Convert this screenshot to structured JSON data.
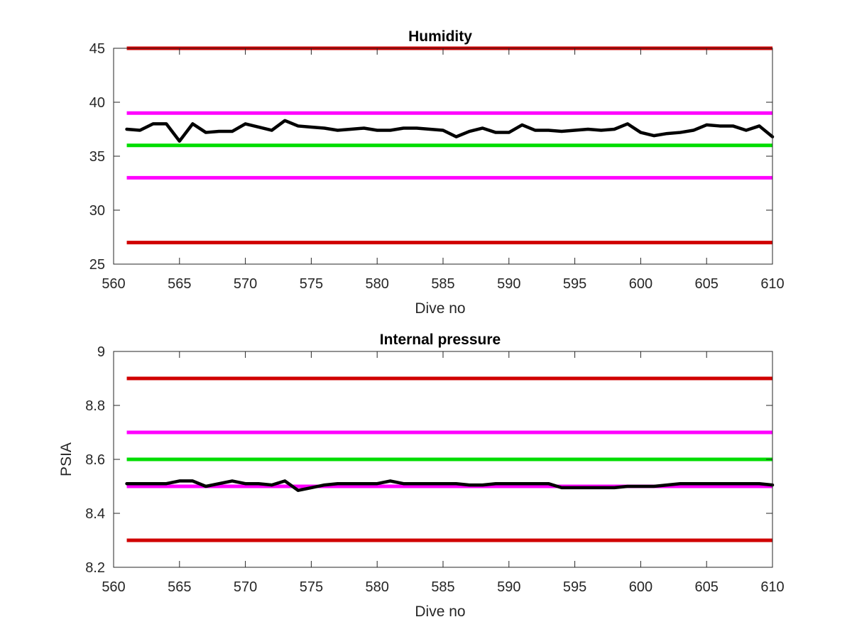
{
  "chart_data": [
    {
      "type": "line",
      "title": "Humidity",
      "xlabel": "Dive no",
      "ylabel": "",
      "xlim": [
        560,
        610
      ],
      "ylim": [
        25,
        45
      ],
      "xticks": [
        560,
        565,
        570,
        575,
        580,
        585,
        590,
        595,
        600,
        605,
        610
      ],
      "yticks": [
        25,
        30,
        35,
        40,
        45
      ],
      "grid": false,
      "reference_lines": [
        {
          "y": 45,
          "color": "#d00000"
        },
        {
          "y": 39,
          "color": "#ff00ff"
        },
        {
          "y": 36,
          "color": "#00dd00"
        },
        {
          "y": 33,
          "color": "#ff00ff"
        },
        {
          "y": 27,
          "color": "#d00000"
        }
      ],
      "series": [
        {
          "color": "#000000",
          "x": [
            561,
            562,
            563,
            564,
            565,
            566,
            567,
            568,
            569,
            570,
            571,
            572,
            573,
            574,
            575,
            576,
            577,
            578,
            579,
            580,
            581,
            582,
            583,
            584,
            585,
            586,
            587,
            588,
            589,
            590,
            591,
            592,
            593,
            594,
            595,
            596,
            597,
            598,
            599,
            600,
            601,
            602,
            603,
            604,
            605,
            606,
            607,
            608,
            609,
            610
          ],
          "y": [
            37.5,
            37.4,
            38.0,
            38.0,
            36.4,
            38.0,
            37.2,
            37.3,
            37.3,
            38.0,
            37.7,
            37.4,
            38.3,
            37.8,
            37.7,
            37.6,
            37.4,
            37.5,
            37.6,
            37.4,
            37.4,
            37.6,
            37.6,
            37.5,
            37.4,
            36.8,
            37.3,
            37.6,
            37.2,
            37.2,
            37.9,
            37.4,
            37.4,
            37.3,
            37.4,
            37.5,
            37.4,
            37.5,
            38.0,
            37.2,
            36.9,
            37.1,
            37.2,
            37.4,
            37.9,
            37.8,
            37.8,
            37.4,
            37.8,
            36.8
          ]
        }
      ]
    },
    {
      "type": "line",
      "title": "Internal pressure",
      "xlabel": "Dive no",
      "ylabel": "PSIA",
      "xlim": [
        560,
        610
      ],
      "ylim": [
        8.2,
        9
      ],
      "xticks": [
        560,
        565,
        570,
        575,
        580,
        585,
        590,
        595,
        600,
        605,
        610
      ],
      "yticks": [
        "8.2",
        "8.4",
        "8.6",
        "8.8",
        "9"
      ],
      "grid": false,
      "reference_lines": [
        {
          "y": 8.9,
          "color": "#d00000"
        },
        {
          "y": 8.7,
          "color": "#ff00ff"
        },
        {
          "y": 8.6,
          "color": "#00dd00"
        },
        {
          "y": 8.5,
          "color": "#ff00ff"
        },
        {
          "y": 8.3,
          "color": "#d00000"
        }
      ],
      "series": [
        {
          "color": "#000000",
          "x": [
            561,
            562,
            563,
            564,
            565,
            566,
            567,
            568,
            569,
            570,
            571,
            572,
            573,
            574,
            575,
            576,
            577,
            578,
            579,
            580,
            581,
            582,
            583,
            584,
            585,
            586,
            587,
            588,
            589,
            590,
            591,
            592,
            593,
            594,
            595,
            596,
            597,
            598,
            599,
            600,
            601,
            602,
            603,
            604,
            605,
            606,
            607,
            608,
            609,
            610
          ],
          "y": [
            8.51,
            8.51,
            8.51,
            8.51,
            8.52,
            8.52,
            8.5,
            8.51,
            8.52,
            8.51,
            8.51,
            8.505,
            8.52,
            8.485,
            8.495,
            8.505,
            8.51,
            8.51,
            8.51,
            8.51,
            8.52,
            8.51,
            8.51,
            8.51,
            8.51,
            8.51,
            8.505,
            8.505,
            8.51,
            8.51,
            8.51,
            8.51,
            8.51,
            8.495,
            8.495,
            8.495,
            8.495,
            8.495,
            8.5,
            8.5,
            8.5,
            8.505,
            8.51,
            8.51,
            8.51,
            8.51,
            8.51,
            8.51,
            8.51,
            8.505
          ]
        }
      ]
    }
  ]
}
